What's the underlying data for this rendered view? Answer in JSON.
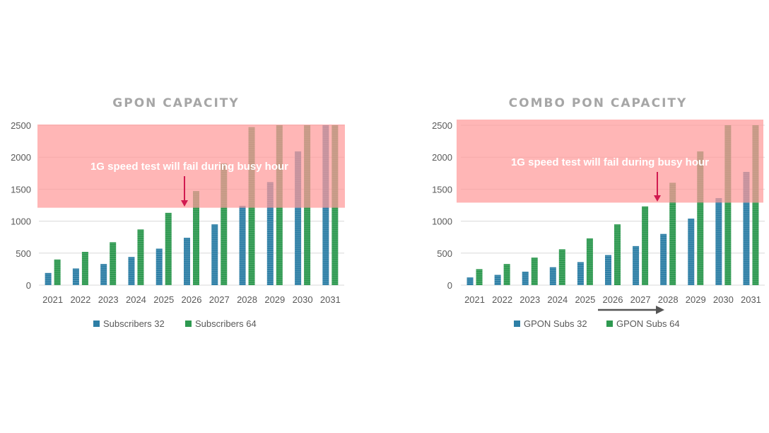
{
  "colors": {
    "series1": "#2e7fa6",
    "series2": "#2e9950",
    "overlay": "#ff9a9a",
    "annotation_arrow": "#d11a50",
    "grid": "#d9d9d9",
    "axis_text": "#595959"
  },
  "chart_data": [
    {
      "type": "bar",
      "title": "GPON CAPACITY",
      "categories": [
        "2021",
        "2022",
        "2023",
        "2024",
        "2025",
        "2026",
        "2027",
        "2028",
        "2029",
        "2030",
        "2031"
      ],
      "ylim": [
        0,
        2500
      ],
      "yticks": [
        0,
        500,
        1000,
        1500,
        2000,
        2500
      ],
      "series": [
        {
          "name": "Subscribers 32",
          "values": [
            190,
            260,
            330,
            440,
            570,
            740,
            950,
            1240,
            1610,
            2090,
            2500
          ]
        },
        {
          "name": "Subscribers 64",
          "values": [
            400,
            520,
            670,
            870,
            1130,
            1470,
            1900,
            2470,
            2500,
            2500,
            2500
          ]
        }
      ],
      "capacity_threshold": 1210,
      "annotation": "1G speed test will fail during busy hour",
      "legend_position": "bottom"
    },
    {
      "type": "bar",
      "title": "COMBO PON CAPACITY",
      "categories": [
        "2021",
        "2022",
        "2023",
        "2024",
        "2025",
        "2026",
        "2027",
        "2028",
        "2029",
        "2030",
        "2031"
      ],
      "ylim": [
        0,
        2500
      ],
      "yticks": [
        0,
        500,
        1000,
        1500,
        2000,
        2500
      ],
      "series": [
        {
          "name": "GPON Subs 32",
          "values": [
            120,
            160,
            210,
            280,
            360,
            470,
            610,
            800,
            1040,
            1360,
            1770
          ]
        },
        {
          "name": "GPON Subs 64",
          "values": [
            250,
            330,
            430,
            560,
            730,
            950,
            1230,
            1600,
            2090,
            2500,
            2500
          ]
        }
      ],
      "capacity_threshold": 1290,
      "annotation": "1G speed test will fail during busy hour",
      "legend_position": "bottom"
    }
  ]
}
